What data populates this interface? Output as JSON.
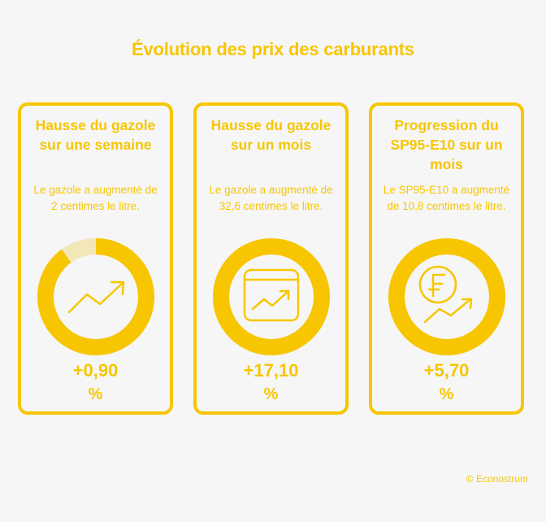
{
  "title": "Évolution des prix des carburants",
  "colors": {
    "accent": "#f7c600",
    "background": "#f6f6f6",
    "ring_track": "#f3e7b8"
  },
  "cards": [
    {
      "heading": "Hausse du gazole sur une semaine",
      "description": "Le gazole a augmenté de 2 centimes le litre.",
      "value": "+0,90",
      "unit": "%",
      "icon": "trend-up-arrow-icon",
      "ring_fill_fraction": 0.9
    },
    {
      "heading": "Hausse du gazole sur un mois",
      "description": "Le gazole a augmenté de 32,6 centimes le litre.",
      "value": "+17,10",
      "unit": "%",
      "icon": "chart-window-icon",
      "ring_fill_fraction": 1.0
    },
    {
      "heading": "Progression du SP95-E10 sur un mois",
      "description": "Le SP95-E10 a augmenté de 10,8 centimes le litre.",
      "value": "+5,70",
      "unit": "%",
      "icon": "franc-coin-trend-icon",
      "ring_fill_fraction": 1.0
    }
  ],
  "credit": "© Econostrum"
}
